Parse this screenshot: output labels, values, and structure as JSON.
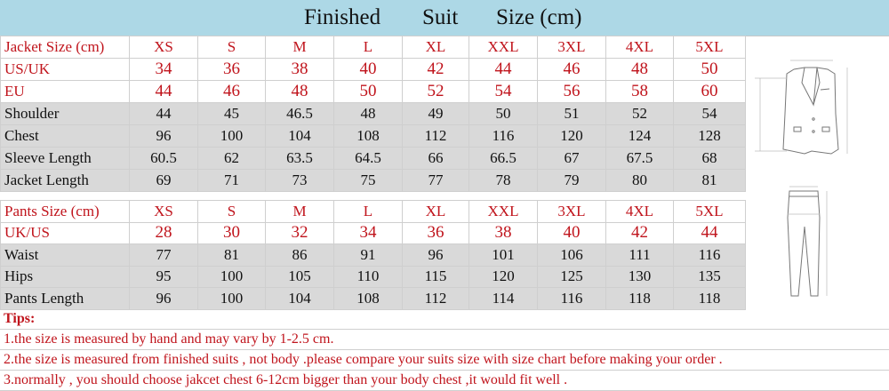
{
  "title": {
    "word1": "Finished",
    "word2": "Suit",
    "word3": "Size (cm)"
  },
  "jacket": {
    "header": [
      "Jacket Size (cm)",
      "XS",
      "S",
      "M",
      "L",
      "XL",
      "XXL",
      "3XL",
      "4XL",
      "5XL"
    ],
    "rows": [
      {
        "style": "red big",
        "cells": [
          "US/UK",
          "34",
          "36",
          "38",
          "40",
          "42",
          "44",
          "46",
          "48",
          "50"
        ]
      },
      {
        "style": "red big",
        "cells": [
          "EU",
          "44",
          "46",
          "48",
          "50",
          "52",
          "54",
          "56",
          "58",
          "60"
        ]
      },
      {
        "style": "gray",
        "cells": [
          "Shoulder",
          "44",
          "45",
          "46.5",
          "48",
          "49",
          "50",
          "51",
          "52",
          "54"
        ]
      },
      {
        "style": "gray",
        "cells": [
          "Chest",
          "96",
          "100",
          "104",
          "108",
          "112",
          "116",
          "120",
          "124",
          "128"
        ]
      },
      {
        "style": "gray",
        "cells": [
          "Sleeve Length",
          "60.5",
          "62",
          "63.5",
          "64.5",
          "66",
          "66.5",
          "67",
          "67.5",
          "68"
        ]
      },
      {
        "style": "gray",
        "cells": [
          "Jacket Length",
          "69",
          "71",
          "73",
          "75",
          "77",
          "78",
          "79",
          "80",
          "81"
        ]
      }
    ]
  },
  "pants": {
    "header": [
      "Pants Size (cm)",
      "XS",
      "S",
      "M",
      "L",
      "XL",
      "XXL",
      "3XL",
      "4XL",
      "5XL"
    ],
    "rows": [
      {
        "style": "red big",
        "cells": [
          "UK/US",
          "28",
          "30",
          "32",
          "34",
          "36",
          "38",
          "40",
          "42",
          "44"
        ]
      },
      {
        "style": "gray",
        "cells": [
          "Waist",
          "77",
          "81",
          "86",
          "91",
          "96",
          "101",
          "106",
          "111",
          "116"
        ]
      },
      {
        "style": "gray",
        "cells": [
          "Hips",
          "95",
          "100",
          "105",
          "110",
          "115",
          "120",
          "125",
          "130",
          "135"
        ]
      },
      {
        "style": "gray",
        "cells": [
          "Pants Length",
          "96",
          "100",
          "104",
          "108",
          "112",
          "114",
          "116",
          "118",
          "118"
        ]
      }
    ]
  },
  "tips": {
    "heading": "Tips:",
    "items": [
      "1.the size is measured by hand and may vary by 1-2.5 cm.",
      "2.the size is measured from finished suits , not body .please compare your suits size with size chart before making your order .",
      "3.normally , you should choose jakcet chest 6-12cm bigger than your body chest ,it would fit well ."
    ]
  },
  "colors": {
    "title_band": "#add8e6",
    "accent_red": "#c0141c",
    "row_gray": "#d9d9d9"
  },
  "illustrations": [
    "jacket-diagram",
    "pants-diagram"
  ]
}
